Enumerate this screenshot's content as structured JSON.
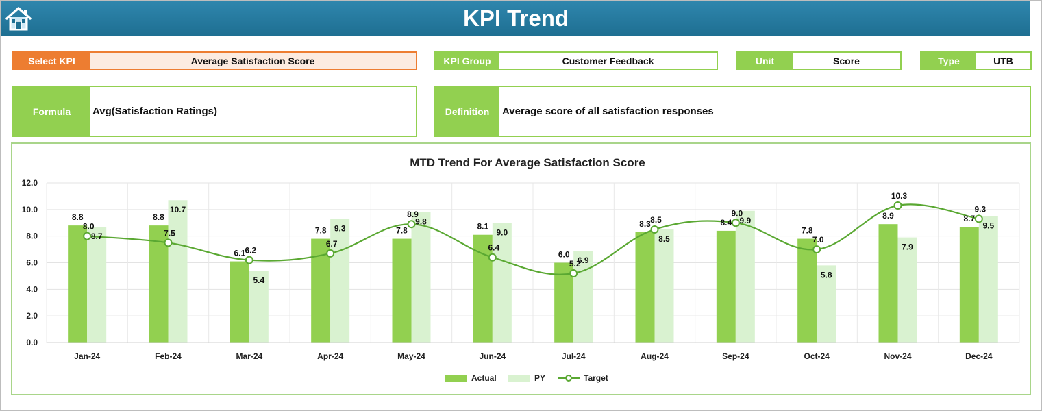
{
  "header": {
    "title": "KPI Trend",
    "home_icon": "home-icon"
  },
  "fields": {
    "select_kpi": {
      "label": "Select KPI",
      "value": "Average Satisfaction Score"
    },
    "kpi_group": {
      "label": "KPI Group",
      "value": "Customer Feedback"
    },
    "unit": {
      "label": "Unit",
      "value": "Score"
    },
    "type": {
      "label": "Type",
      "value": "UTB"
    },
    "formula": {
      "label": "Formula",
      "value": "Avg(Satisfaction Ratings)"
    },
    "definition": {
      "label": "Definition",
      "value": "Average score of all satisfaction responses"
    }
  },
  "colors": {
    "actual": "#92d050",
    "py": "#d9f2d0",
    "target": "#5aa832",
    "accent_orange": "#ed7d31",
    "header": "#1f7096"
  },
  "chart_data": {
    "type": "bar",
    "title": "MTD Trend For Average Satisfaction Score",
    "categories": [
      "Jan-24",
      "Feb-24",
      "Mar-24",
      "Apr-24",
      "May-24",
      "Jun-24",
      "Jul-24",
      "Aug-24",
      "Sep-24",
      "Oct-24",
      "Nov-24",
      "Dec-24"
    ],
    "series": [
      {
        "name": "Actual",
        "type": "bar",
        "values": [
          8.8,
          8.8,
          6.1,
          7.8,
          7.8,
          8.1,
          6.0,
          8.3,
          8.4,
          7.8,
          8.9,
          8.7
        ]
      },
      {
        "name": "PY",
        "type": "bar",
        "values": [
          8.7,
          10.7,
          5.4,
          9.3,
          9.8,
          9.0,
          6.9,
          8.5,
          9.9,
          5.8,
          7.9,
          9.5
        ]
      },
      {
        "name": "Target",
        "type": "line",
        "values": [
          8.0,
          7.5,
          6.2,
          6.7,
          8.9,
          6.4,
          5.2,
          8.5,
          9.0,
          7.0,
          10.3,
          9.3
        ]
      }
    ],
    "ylim": [
      0,
      12
    ],
    "yticks": [
      "0.0",
      "2.0",
      "4.0",
      "6.0",
      "8.0",
      "10.0",
      "12.0"
    ],
    "grid": true,
    "legend": "bottom"
  }
}
